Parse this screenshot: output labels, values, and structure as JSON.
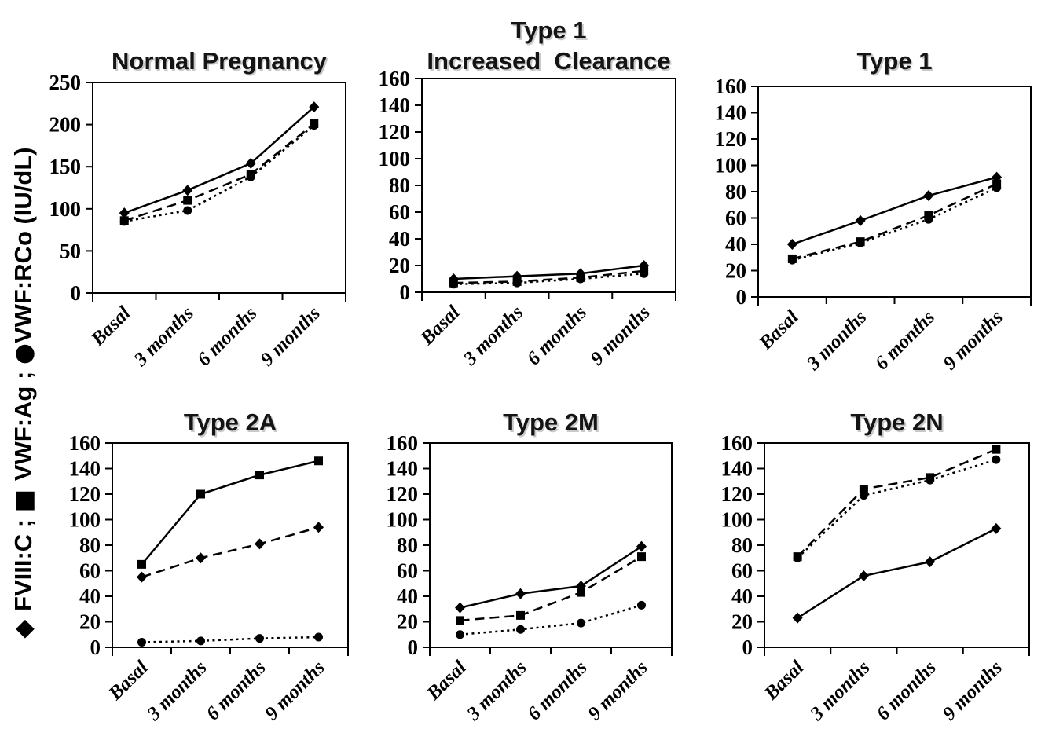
{
  "figure": {
    "y_axis_label": {
      "text": "◆ FVIII:C ; ■ VWF:Ag ; ●VWF:RCo (IU/dL)",
      "separator": " ; ",
      "unit": " (IU/dL)",
      "parts": [
        {
          "marker": "diamond",
          "glyph": "◆ ",
          "label": "FVIII:C"
        },
        {
          "marker": "square",
          "glyph": "■ ",
          "label": "VWF:Ag"
        },
        {
          "marker": "circle",
          "glyph": "●",
          "label": "VWF:RCo"
        }
      ]
    },
    "colors": {
      "ink": "#000000",
      "background": "#ffffff"
    }
  },
  "chart_data": [
    {
      "type": "line",
      "title": "Normal Pregnancy",
      "title_lines": [
        "Normal Pregnancy"
      ],
      "categories": [
        "Basal",
        "3 months",
        "6 months",
        "9 months"
      ],
      "xlabel": "",
      "ylabel": "",
      "ylim": [
        0,
        250
      ],
      "yticks": [
        0,
        50,
        100,
        150,
        200,
        250
      ],
      "grid": false,
      "legend_position": "none",
      "series": [
        {
          "name": "FVIII:C",
          "marker": "diamond",
          "line": "solid",
          "values": [
            95,
            122,
            154,
            221
          ]
        },
        {
          "name": "VWF:Ag",
          "marker": "square",
          "line": "dash",
          "values": [
            86,
            110,
            141,
            201
          ]
        },
        {
          "name": "VWF:RCo",
          "marker": "circle",
          "line": "dot",
          "values": [
            85,
            98,
            138,
            199
          ]
        }
      ]
    },
    {
      "type": "line",
      "title": "Type 1 Increased Clearance",
      "title_lines": [
        "Type 1",
        "Increased  Clearance"
      ],
      "categories": [
        "Basal",
        "3 months",
        "6 months",
        "9 months"
      ],
      "xlabel": "",
      "ylabel": "",
      "ylim": [
        0,
        160
      ],
      "yticks": [
        0,
        20,
        40,
        60,
        80,
        100,
        120,
        140,
        160
      ],
      "grid": false,
      "legend_position": "none",
      "series": [
        {
          "name": "FVIII:C",
          "marker": "diamond",
          "line": "solid",
          "values": [
            10,
            12,
            14,
            20
          ]
        },
        {
          "name": "VWF:Ag",
          "marker": "square",
          "line": "dash",
          "values": [
            7,
            8,
            11,
            16
          ]
        },
        {
          "name": "VWF:RCo",
          "marker": "circle",
          "line": "dot",
          "values": [
            6,
            7,
            10,
            14
          ]
        }
      ]
    },
    {
      "type": "line",
      "title": "Type 1",
      "title_lines": [
        "Type 1"
      ],
      "categories": [
        "Basal",
        "3 months",
        "6 months",
        "9 months"
      ],
      "xlabel": "",
      "ylabel": "",
      "ylim": [
        0,
        160
      ],
      "yticks": [
        0,
        20,
        40,
        60,
        80,
        100,
        120,
        140,
        160
      ],
      "grid": false,
      "legend_position": "none",
      "series": [
        {
          "name": "FVIII:C",
          "marker": "diamond",
          "line": "solid",
          "values": [
            40,
            58,
            77,
            91
          ]
        },
        {
          "name": "VWF:Ag",
          "marker": "square",
          "line": "dash",
          "values": [
            29,
            42,
            62,
            86
          ]
        },
        {
          "name": "VWF:RCo",
          "marker": "circle",
          "line": "dot",
          "values": [
            28,
            41,
            59,
            83
          ]
        }
      ]
    },
    {
      "type": "line",
      "title": "Type 2A",
      "title_lines": [
        "Type 2A"
      ],
      "categories": [
        "Basal",
        "3 months",
        "6 months",
        "9 months"
      ],
      "xlabel": "",
      "ylabel": "",
      "ylim": [
        0,
        160
      ],
      "yticks": [
        0,
        20,
        40,
        60,
        80,
        100,
        120,
        140,
        160
      ],
      "grid": false,
      "legend_position": "none",
      "series": [
        {
          "name": "FVIII:C",
          "marker": "diamond",
          "line": "dash",
          "values": [
            55,
            70,
            81,
            94
          ]
        },
        {
          "name": "VWF:Ag",
          "marker": "square",
          "line": "solid",
          "values": [
            65,
            120,
            135,
            146
          ]
        },
        {
          "name": "VWF:RCo",
          "marker": "circle",
          "line": "dot",
          "values": [
            4,
            5,
            7,
            8
          ]
        }
      ]
    },
    {
      "type": "line",
      "title": "Type 2M",
      "title_lines": [
        "Type 2M"
      ],
      "categories": [
        "Basal",
        "3 months",
        "6 months",
        "9 months"
      ],
      "xlabel": "",
      "ylabel": "",
      "ylim": [
        0,
        160
      ],
      "yticks": [
        0,
        20,
        40,
        60,
        80,
        100,
        120,
        140,
        160
      ],
      "grid": false,
      "legend_position": "none",
      "series": [
        {
          "name": "FVIII:C",
          "marker": "diamond",
          "line": "solid",
          "values": [
            31,
            42,
            48,
            79
          ]
        },
        {
          "name": "VWF:Ag",
          "marker": "square",
          "line": "dash",
          "values": [
            21,
            25,
            43,
            71
          ]
        },
        {
          "name": "VWF:RCo",
          "marker": "circle",
          "line": "dot",
          "values": [
            10,
            14,
            19,
            33
          ]
        }
      ]
    },
    {
      "type": "line",
      "title": "Type 2N",
      "title_lines": [
        "Type 2N"
      ],
      "categories": [
        "Basal",
        "3 months",
        "6 months",
        "9 months"
      ],
      "xlabel": "",
      "ylabel": "",
      "ylim": [
        0,
        160
      ],
      "yticks": [
        0,
        20,
        40,
        60,
        80,
        100,
        120,
        140,
        160
      ],
      "grid": false,
      "legend_position": "none",
      "series": [
        {
          "name": "FVIII:C",
          "marker": "diamond",
          "line": "solid",
          "values": [
            23,
            56,
            67,
            93
          ]
        },
        {
          "name": "VWF:Ag",
          "marker": "square",
          "line": "dash",
          "values": [
            71,
            124,
            133,
            155
          ]
        },
        {
          "name": "VWF:RCo",
          "marker": "circle",
          "line": "dot",
          "values": [
            70,
            119,
            131,
            147
          ]
        }
      ]
    }
  ]
}
